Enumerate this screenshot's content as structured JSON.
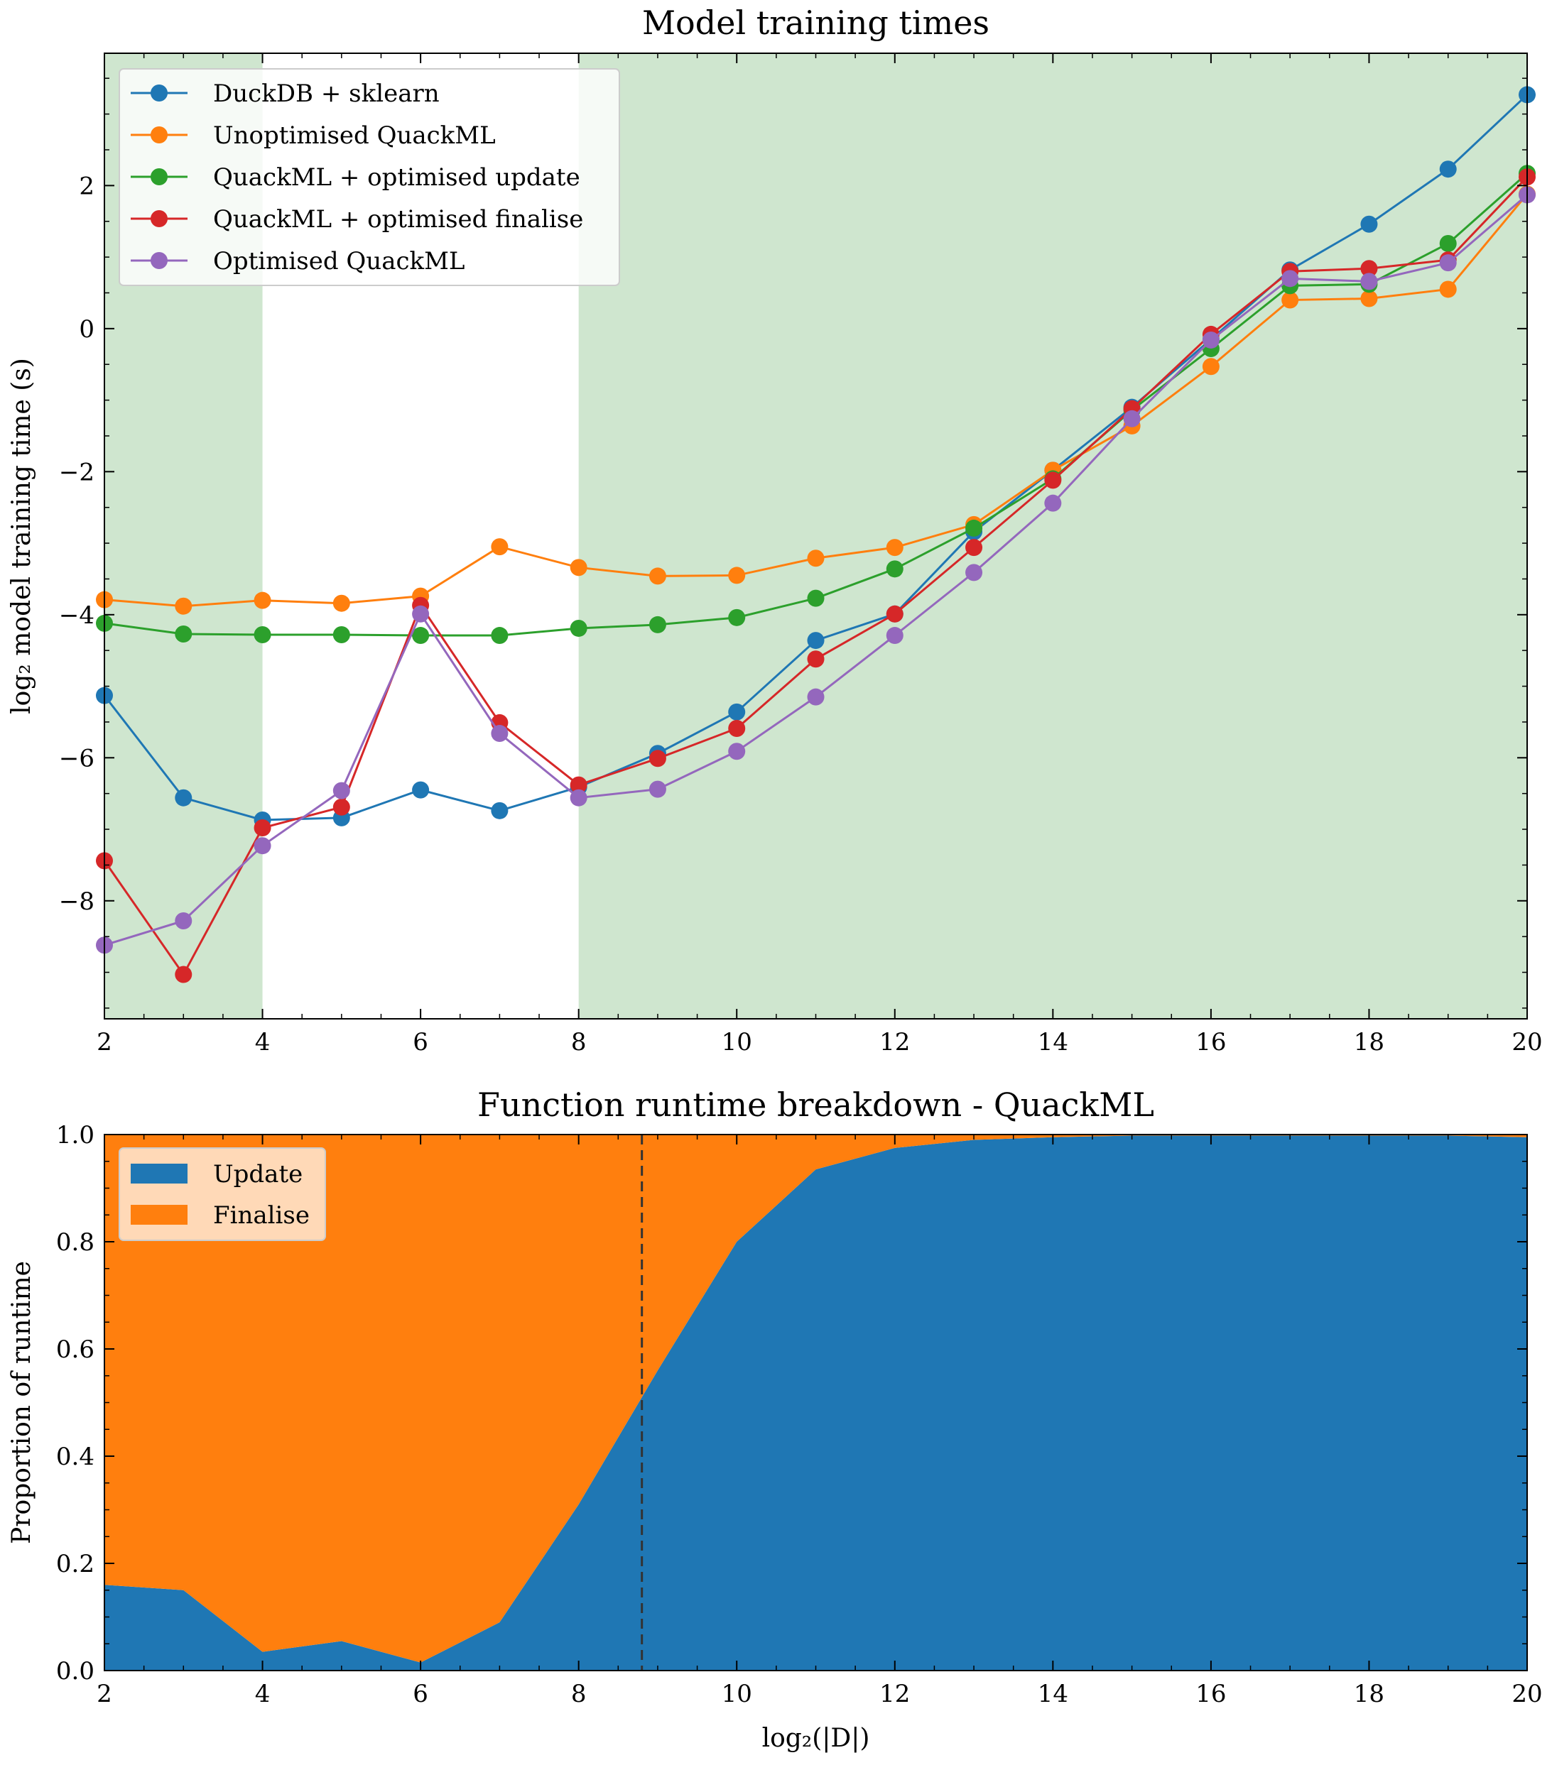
{
  "chart_data": [
    {
      "type": "line",
      "title": "Model training times",
      "xlabel": "",
      "ylabel": "log₂ model training time (s)",
      "xlim": [
        2,
        20
      ],
      "ylim": [
        -9.65,
        3.85
      ],
      "xticks": [
        2,
        4,
        6,
        8,
        10,
        12,
        14,
        16,
        18,
        20
      ],
      "yticks": [
        -8,
        -6,
        -4,
        -2,
        0,
        2
      ],
      "ytick_labels": [
        "−8",
        "−6",
        "−4",
        "−2",
        "0",
        "2"
      ],
      "grid": false,
      "legend_position": "upper-left",
      "shaded_regions": [
        {
          "from": 2,
          "to": 4,
          "color": "#cfe6cf"
        },
        {
          "from": 8,
          "to": 20,
          "color": "#cfe6cf"
        }
      ],
      "x": [
        2,
        3,
        4,
        5,
        6,
        7,
        8,
        9,
        10,
        11,
        12,
        13,
        14,
        15,
        16,
        17,
        18,
        19,
        20
      ],
      "series": [
        {
          "name": "DuckDB + sklearn",
          "color": "#1f77b4",
          "values": [
            -5.13,
            -6.56,
            -6.87,
            -6.84,
            -6.45,
            -6.74,
            -6.41,
            -5.94,
            -5.36,
            -4.36,
            -3.99,
            -2.84,
            -1.98,
            -1.1,
            -0.15,
            0.82,
            1.46,
            2.23,
            3.27
          ]
        },
        {
          "name": "Unoptimised QuackML",
          "color": "#ff7f0e",
          "values": [
            -3.79,
            -3.88,
            -3.8,
            -3.84,
            -3.74,
            -3.05,
            -3.34,
            -3.46,
            -3.45,
            -3.21,
            -3.06,
            -2.74,
            -1.98,
            -1.36,
            -0.53,
            0.4,
            0.42,
            0.55,
            1.88
          ]
        },
        {
          "name": "QuackML + optimised update",
          "color": "#2ca02c",
          "values": [
            -4.12,
            -4.27,
            -4.28,
            -4.28,
            -4.29,
            -4.29,
            -4.19,
            -4.14,
            -4.04,
            -3.77,
            -3.36,
            -2.79,
            -2.1,
            -1.14,
            -0.28,
            0.6,
            0.62,
            1.19,
            2.17
          ]
        },
        {
          "name": "QuackML + optimised finalise",
          "color": "#d62728",
          "values": [
            -7.44,
            -9.03,
            -6.98,
            -6.69,
            -3.87,
            -5.51,
            -6.38,
            -6.01,
            -5.59,
            -4.62,
            -3.99,
            -3.06,
            -2.12,
            -1.12,
            -0.08,
            0.8,
            0.84,
            0.96,
            2.12
          ]
        },
        {
          "name": "Optimised QuackML",
          "color": "#9467bd",
          "values": [
            -8.62,
            -8.28,
            -7.23,
            -6.46,
            -3.99,
            -5.66,
            -6.56,
            -6.44,
            -5.91,
            -5.15,
            -4.29,
            -3.41,
            -2.44,
            -1.26,
            -0.16,
            0.7,
            0.66,
            0.92,
            1.87
          ]
        }
      ]
    },
    {
      "type": "area",
      "stacked": true,
      "title": "Function runtime breakdown - QuackML",
      "xlabel": "log₂(|D|)",
      "ylabel": "Proportion of runtime",
      "xlim": [
        2,
        20
      ],
      "ylim": [
        0.0,
        1.0
      ],
      "xticks": [
        2,
        4,
        6,
        8,
        10,
        12,
        14,
        16,
        18,
        20
      ],
      "yticks": [
        0.0,
        0.2,
        0.4,
        0.6,
        0.8,
        1.0
      ],
      "ytick_labels": [
        "0.0",
        "0.2",
        "0.4",
        "0.6",
        "0.8",
        "1.0"
      ],
      "grid": false,
      "legend_position": "upper-left",
      "vline": {
        "x": 8.8,
        "style": "dashed",
        "color": "#333333"
      },
      "x": [
        2,
        3,
        4,
        5,
        6,
        7,
        8,
        9,
        10,
        11,
        12,
        13,
        14,
        15,
        16,
        17,
        18,
        19,
        20
      ],
      "series": [
        {
          "name": "Update",
          "color": "#1f77b4",
          "values": [
            0.16,
            0.15,
            0.035,
            0.055,
            0.015,
            0.09,
            0.31,
            0.56,
            0.8,
            0.935,
            0.975,
            0.99,
            0.995,
            0.998,
            0.998,
            0.998,
            0.998,
            0.998,
            0.995
          ]
        },
        {
          "name": "Finalise",
          "color": "#ff7f0e",
          "values": [
            0.84,
            0.85,
            0.965,
            0.945,
            0.985,
            0.91,
            0.69,
            0.44,
            0.2,
            0.065,
            0.025,
            0.01,
            0.005,
            0.002,
            0.002,
            0.002,
            0.002,
            0.002,
            0.005
          ]
        }
      ]
    }
  ]
}
